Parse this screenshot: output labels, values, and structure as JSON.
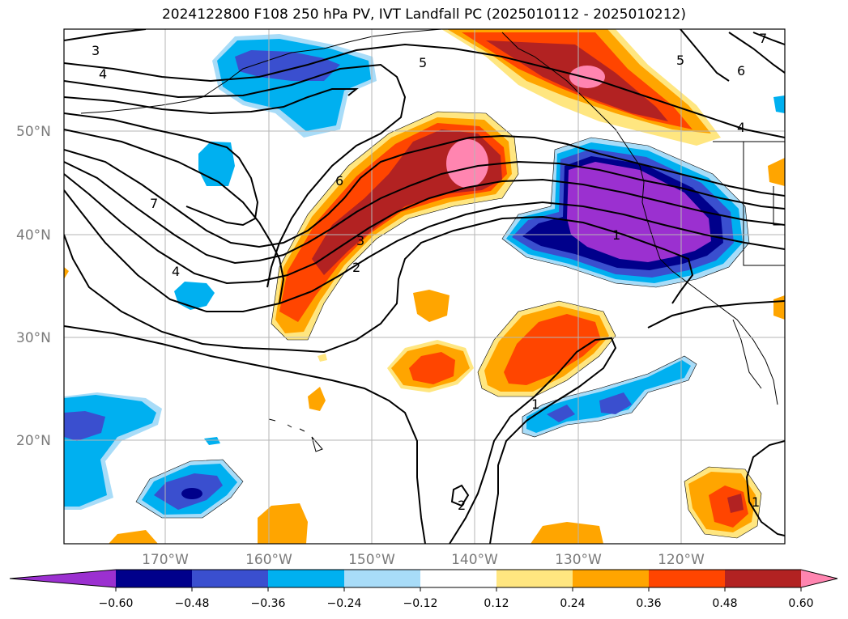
{
  "title": "2024122800 F108 250 hPa PV, IVT Landfall PC (2025010112 - 2025010212)",
  "lat_labels": [
    "50°N",
    "40°N",
    "30°N",
    "20°N"
  ],
  "lon_labels": [
    "170°W",
    "160°W",
    "150°W",
    "140°W",
    "130°W",
    "120°W"
  ],
  "contour_labels": [
    "3",
    "4",
    "7",
    "4",
    "6",
    "3",
    "2",
    "5",
    "5",
    "6",
    "4",
    "7",
    "1",
    "1",
    "2",
    "1"
  ],
  "colorbar": {
    "ticks": [
      "-0.60",
      "-0.48",
      "-0.36",
      "-0.24",
      "-0.12",
      "0.12",
      "0.24",
      "0.36",
      "0.48",
      "0.60"
    ],
    "colors": [
      "#9b30d0",
      "#00008b",
      "#3a4fcf",
      "#00b0f0",
      "#a8dcf8",
      "#ffffff",
      "#ffe680",
      "#ffa500",
      "#ff4500",
      "#b22222",
      "#ff85b0"
    ]
  }
}
